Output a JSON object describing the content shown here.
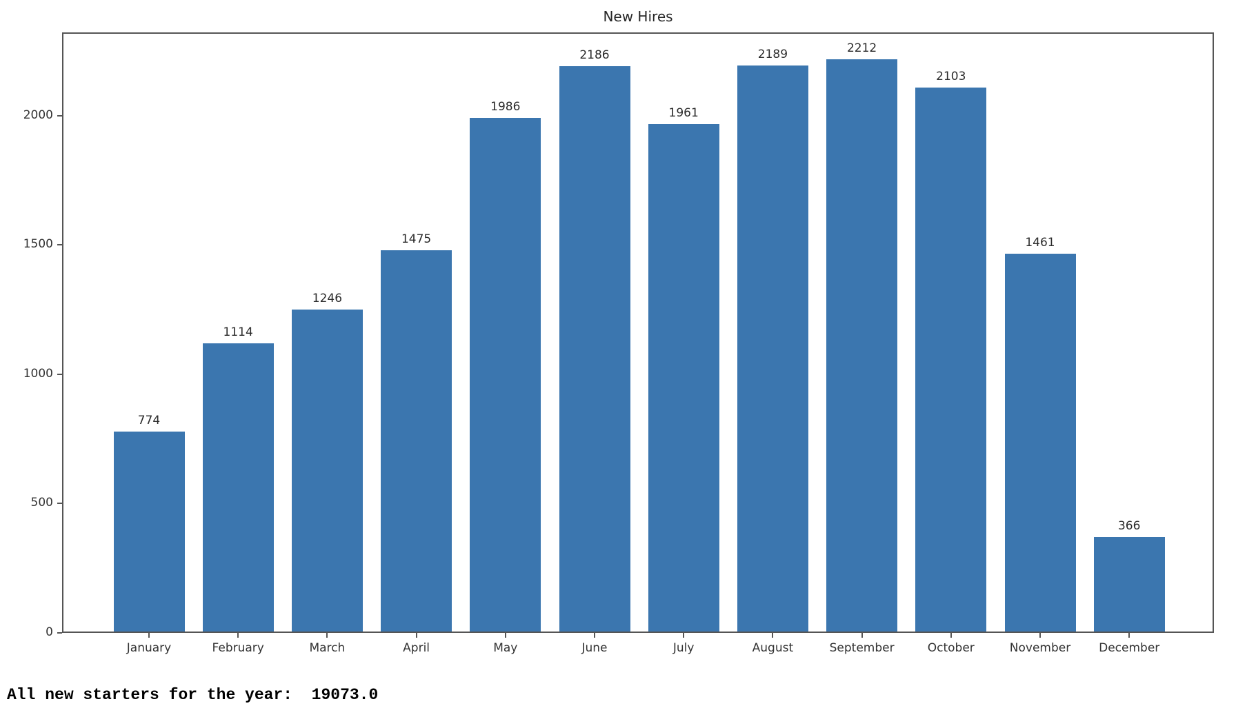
{
  "chart_data": {
    "type": "bar",
    "title": "New Hires",
    "categories": [
      "January",
      "February",
      "March",
      "April",
      "May",
      "June",
      "July",
      "August",
      "September",
      "October",
      "November",
      "December"
    ],
    "values": [
      774,
      1114,
      1246,
      1475,
      1986,
      2186,
      1961,
      2189,
      2212,
      2103,
      1461,
      366
    ],
    "bar_value_labels": [
      "774",
      "1114",
      "1246",
      "1475",
      "1986",
      "2186",
      "1961",
      "2189",
      "2212",
      "2103",
      "1461",
      "366"
    ],
    "xlabel": "",
    "ylabel": "",
    "ylim": [
      0,
      2322
    ],
    "yticks": [
      0,
      500,
      1000,
      1500,
      2000
    ],
    "grid": false,
    "legend_position": "none",
    "bar_color": "#3b76af",
    "spine_color": "#555555",
    "text_color": "#333333"
  },
  "footer": {
    "total_text": "All new starters for the year:  19073.0"
  }
}
